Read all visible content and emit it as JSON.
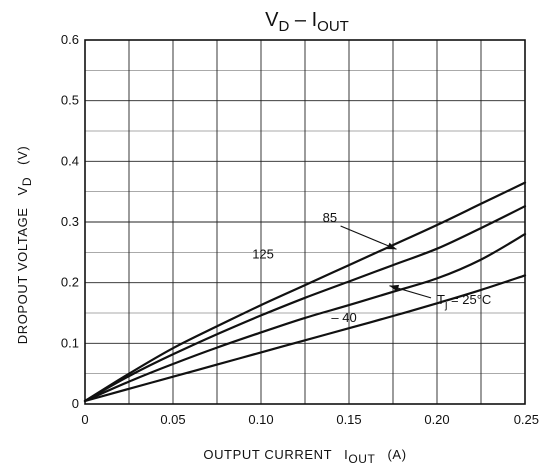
{
  "chart_data": {
    "type": "line",
    "title": {
      "main": "V",
      "main_sub": "D",
      "dash": " – ",
      "second": "I",
      "second_sub": "OUT"
    },
    "xlabel": {
      "text": "OUTPUT CURRENT",
      "symbol": "I",
      "symbol_sub": "OUT",
      "unit": "(A)"
    },
    "ylabel": {
      "text": "DROPOUT VOLTAGE",
      "symbol": "V",
      "symbol_sub": "D",
      "unit": "(V)"
    },
    "xlim": [
      0,
      0.25
    ],
    "ylim": [
      0,
      0.6
    ],
    "x_ticks": [
      {
        "value": 0,
        "label": "0"
      },
      {
        "value": 0.05,
        "label": "0.05"
      },
      {
        "value": 0.1,
        "label": "0.10"
      },
      {
        "value": 0.15,
        "label": "0.15"
      },
      {
        "value": 0.2,
        "label": "0.20"
      },
      {
        "value": 0.25,
        "label": "0.25"
      }
    ],
    "y_ticks": [
      {
        "value": 0,
        "label": "0"
      },
      {
        "value": 0.1,
        "label": "0.1"
      },
      {
        "value": 0.2,
        "label": "0.2"
      },
      {
        "value": 0.3,
        "label": "0.3"
      },
      {
        "value": 0.4,
        "label": "0.4"
      },
      {
        "value": 0.5,
        "label": "0.5"
      },
      {
        "value": 0.6,
        "label": "0.6"
      }
    ],
    "x_grid_step": 0.025,
    "y_grid_major": 0.1,
    "y_grid_minor": 0.05,
    "grid": true,
    "series": [
      {
        "name": "125",
        "x": [
          0,
          0.025,
          0.05,
          0.075,
          0.1,
          0.125,
          0.15,
          0.175,
          0.2,
          0.225,
          0.25
        ],
        "y": [
          0.005,
          0.05,
          0.092,
          0.128,
          0.163,
          0.196,
          0.229,
          0.262,
          0.295,
          0.33,
          0.365
        ]
      },
      {
        "name": "85",
        "x": [
          0,
          0.025,
          0.05,
          0.075,
          0.1,
          0.125,
          0.15,
          0.175,
          0.2,
          0.225,
          0.25
        ],
        "y": [
          0.005,
          0.046,
          0.082,
          0.115,
          0.146,
          0.175,
          0.202,
          0.229,
          0.256,
          0.29,
          0.326
        ]
      },
      {
        "name": "25°C",
        "x": [
          0,
          0.025,
          0.05,
          0.075,
          0.1,
          0.125,
          0.15,
          0.175,
          0.2,
          0.225,
          0.25
        ],
        "y": [
          0.005,
          0.037,
          0.066,
          0.093,
          0.118,
          0.142,
          0.163,
          0.185,
          0.207,
          0.238,
          0.28
        ]
      },
      {
        "name": "-40",
        "x": [
          0,
          0.025,
          0.05,
          0.075,
          0.1,
          0.125,
          0.15,
          0.175,
          0.2,
          0.225,
          0.25
        ],
        "y": [
          0.005,
          0.025,
          0.045,
          0.065,
          0.085,
          0.105,
          0.125,
          0.145,
          0.166,
          0.188,
          0.212
        ]
      }
    ],
    "annotations": [
      {
        "series": "125",
        "text": "125",
        "x": 0.095,
        "y": 0.24
      },
      {
        "series": "85",
        "text": "85",
        "x": 0.135,
        "y": 0.3,
        "arrow_to": [
          0.177,
          0.255
        ]
      },
      {
        "series": "-40",
        "text": "– 40",
        "x": 0.14,
        "y": 0.135
      },
      {
        "series": "25°C",
        "text": "25°C",
        "prefix": "T",
        "prefix_sub": "j",
        "eq": " = ",
        "x": 0.2,
        "y": 0.165,
        "arrow_to": [
          0.173,
          0.195
        ]
      }
    ]
  }
}
